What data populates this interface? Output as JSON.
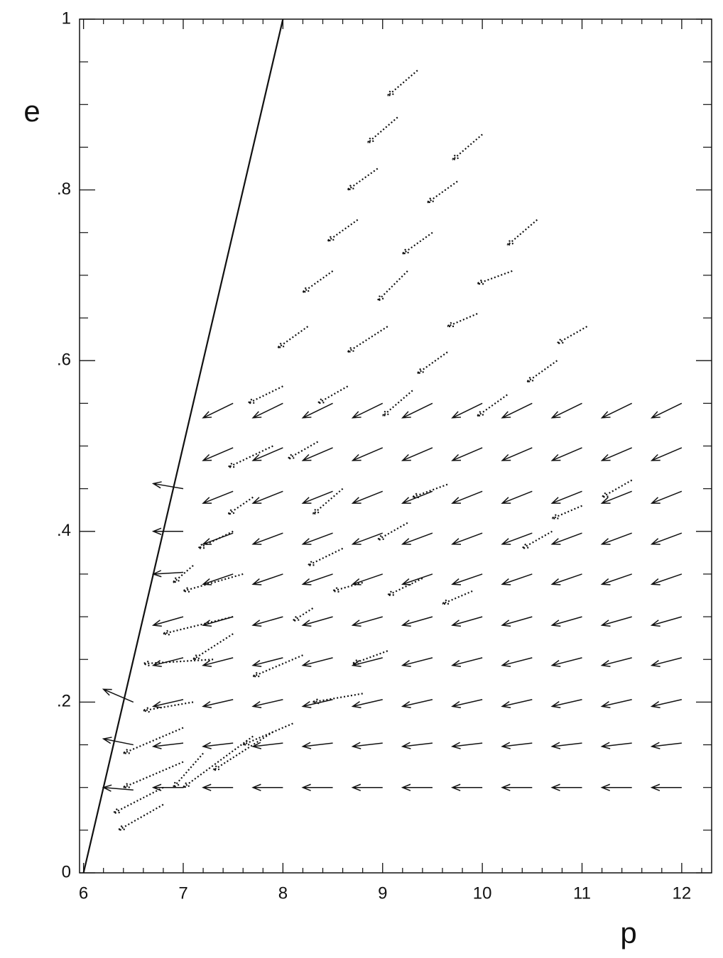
{
  "chart_data": {
    "type": "quiver",
    "xlabel": "p",
    "ylabel": "e",
    "xlim": [
      5.96,
      12.3
    ],
    "ylim": [
      0,
      1
    ],
    "xticks": [
      6,
      7,
      8,
      9,
      10,
      11,
      12
    ],
    "yticks": [
      0,
      {
        "value": 0.2,
        "label": ".2"
      },
      {
        "value": 0.4,
        "label": ".4"
      },
      {
        "value": 0.6,
        "label": ".6"
      },
      {
        "value": 0.8,
        "label": ".8"
      },
      1
    ],
    "xminorticks": [
      6.2,
      6.4,
      6.6,
      6.8,
      7.2,
      7.4,
      7.6,
      7.8,
      8.2,
      8.4,
      8.6,
      8.8,
      9.2,
      9.4,
      9.6,
      9.8,
      10.2,
      10.4,
      10.6,
      10.8,
      11.2,
      11.4,
      11.6,
      11.8,
      12.2
    ],
    "yminorticks": [
      0.05,
      0.1,
      0.15,
      0.25,
      0.3,
      0.35,
      0.45,
      0.5,
      0.55,
      0.65,
      0.7,
      0.75,
      0.85,
      0.9,
      0.95
    ],
    "line": {
      "p": [
        6,
        8
      ],
      "e": [
        0,
        1
      ]
    },
    "color": "#111111",
    "arrows": [
      {
        "style": "solid",
        "p0": [
          6.5,
          7.0,
          7.5,
          8.0,
          8.5,
          9.0,
          9.5,
          10.0,
          10.5,
          11.0,
          11.5,
          12.0
        ],
        "e0": [
          0.097,
          0.1,
          0.1,
          0.1,
          0.1,
          0.1,
          0.1,
          0.1,
          0.1,
          0.1,
          0.1,
          0.1
        ],
        "p1": [
          6.2,
          6.7,
          7.2,
          7.7,
          8.2,
          8.7,
          9.2,
          9.7,
          10.2,
          10.7,
          11.2,
          11.7
        ],
        "e1": [
          0.1,
          0.1,
          0.1,
          0.1,
          0.1,
          0.1,
          0.1,
          0.1,
          0.1,
          0.1,
          0.1,
          0.1
        ]
      },
      {
        "style": "solid",
        "p0": [
          6.5,
          7.0,
          7.5,
          8.0,
          8.5,
          9.0,
          9.5,
          10.0,
          10.5,
          11.0,
          11.5,
          12.0
        ],
        "e0": [
          0.15,
          0.152,
          0.152,
          0.152,
          0.152,
          0.152,
          0.152,
          0.152,
          0.152,
          0.152,
          0.152,
          0.152
        ],
        "p1": [
          6.2,
          6.7,
          7.2,
          7.7,
          8.2,
          8.7,
          9.2,
          9.7,
          10.2,
          10.7,
          11.2,
          11.7
        ],
        "e1": [
          0.157,
          0.148,
          0.148,
          0.148,
          0.148,
          0.148,
          0.148,
          0.148,
          0.148,
          0.148,
          0.148,
          0.148
        ]
      },
      {
        "style": "solid",
        "p0": [
          6.5,
          7.0,
          7.5,
          8.0,
          8.5,
          9.0,
          9.5,
          10.0,
          10.5,
          11.0,
          11.5,
          12.0
        ],
        "e0": [
          0.2,
          0.203,
          0.203,
          0.203,
          0.203,
          0.203,
          0.203,
          0.203,
          0.203,
          0.203,
          0.203,
          0.203
        ],
        "p1": [
          6.2,
          6.7,
          7.2,
          7.7,
          8.2,
          8.7,
          9.2,
          9.7,
          10.2,
          10.7,
          11.2,
          11.7
        ],
        "e1": [
          0.215,
          0.195,
          0.195,
          0.195,
          0.195,
          0.195,
          0.195,
          0.195,
          0.195,
          0.195,
          0.195,
          0.195
        ]
      },
      {
        "style": "solid",
        "p0": [
          7.0,
          7.5,
          8.0,
          8.5,
          9.0,
          9.5,
          10.0,
          10.5,
          11.0,
          11.5,
          12.0
        ],
        "e0": [
          0.252,
          0.252,
          0.252,
          0.252,
          0.252,
          0.252,
          0.252,
          0.252,
          0.252,
          0.252,
          0.252
        ],
        "p1": [
          6.7,
          7.2,
          7.7,
          8.2,
          8.7,
          9.2,
          9.7,
          10.2,
          10.7,
          11.2,
          11.7
        ],
        "e1": [
          0.243,
          0.243,
          0.243,
          0.243,
          0.243,
          0.243,
          0.243,
          0.243,
          0.243,
          0.243,
          0.243
        ]
      },
      {
        "style": "solid",
        "p0": [
          7.0,
          7.5,
          8.0,
          8.5,
          9.0,
          9.5,
          10.0,
          10.5,
          11.0,
          11.5,
          12.0
        ],
        "e0": [
          0.3,
          0.3,
          0.3,
          0.3,
          0.3,
          0.3,
          0.3,
          0.3,
          0.3,
          0.3,
          0.3
        ],
        "p1": [
          6.7,
          7.2,
          7.7,
          8.2,
          8.7,
          9.2,
          9.7,
          10.2,
          10.7,
          11.2,
          11.7
        ],
        "e1": [
          0.29,
          0.29,
          0.29,
          0.29,
          0.29,
          0.29,
          0.29,
          0.29,
          0.29,
          0.29,
          0.29
        ]
      },
      {
        "style": "solid",
        "p0": [
          7.0,
          7.5,
          8.0,
          8.5,
          9.0,
          9.5,
          10.0,
          10.5,
          11.0,
          11.5,
          12.0
        ],
        "e0": [
          0.352,
          0.35,
          0.35,
          0.35,
          0.35,
          0.35,
          0.35,
          0.35,
          0.35,
          0.35,
          0.35
        ],
        "p1": [
          6.7,
          7.2,
          7.7,
          8.2,
          8.7,
          9.2,
          9.7,
          10.2,
          10.7,
          11.2,
          11.7
        ],
        "e1": [
          0.35,
          0.338,
          0.338,
          0.338,
          0.338,
          0.338,
          0.338,
          0.338,
          0.338,
          0.338,
          0.338
        ]
      },
      {
        "style": "solid",
        "p0": [
          7.0,
          7.5,
          8.0,
          8.5,
          9.0,
          9.5,
          10.0,
          10.5,
          11.0,
          11.5,
          12.0
        ],
        "e0": [
          0.4,
          0.398,
          0.398,
          0.398,
          0.398,
          0.398,
          0.398,
          0.398,
          0.398,
          0.398,
          0.398
        ],
        "p1": [
          6.7,
          7.2,
          7.7,
          8.2,
          8.7,
          9.2,
          9.7,
          10.2,
          10.7,
          11.2,
          11.7
        ],
        "e1": [
          0.4,
          0.385,
          0.385,
          0.385,
          0.385,
          0.385,
          0.385,
          0.385,
          0.385,
          0.385,
          0.385
        ]
      },
      {
        "style": "solid",
        "p0": [
          7.0,
          7.5,
          8.0,
          8.5,
          9.0,
          9.5,
          10.0,
          10.5,
          11.0,
          11.5,
          12.0
        ],
        "e0": [
          0.45,
          0.447,
          0.447,
          0.447,
          0.447,
          0.447,
          0.447,
          0.447,
          0.447,
          0.447,
          0.447
        ],
        "p1": [
          6.7,
          7.2,
          7.7,
          8.2,
          8.7,
          9.2,
          9.7,
          10.2,
          10.7,
          11.2,
          11.7
        ],
        "e1": [
          0.456,
          0.433,
          0.433,
          0.433,
          0.433,
          0.433,
          0.433,
          0.433,
          0.433,
          0.433,
          0.433
        ]
      },
      {
        "style": "solid",
        "p0": [
          7.5,
          8.0,
          8.5,
          9.0,
          9.5,
          10.0,
          10.5,
          11.0,
          11.5,
          12.0
        ],
        "e0": [
          0.498,
          0.498,
          0.498,
          0.498,
          0.498,
          0.498,
          0.498,
          0.498,
          0.498,
          0.498
        ],
        "p1": [
          7.2,
          7.7,
          8.2,
          8.7,
          9.2,
          9.7,
          10.2,
          10.7,
          11.2,
          11.7
        ],
        "e1": [
          0.483,
          0.483,
          0.483,
          0.483,
          0.483,
          0.483,
          0.483,
          0.483,
          0.483,
          0.483
        ]
      },
      {
        "style": "solid",
        "p0": [
          7.5,
          8.0,
          8.5,
          9.0,
          9.5,
          10.0,
          10.5,
          11.0,
          11.5,
          12.0
        ],
        "e0": [
          0.55,
          0.55,
          0.55,
          0.55,
          0.55,
          0.55,
          0.55,
          0.55,
          0.55,
          0.55
        ],
        "p1": [
          7.2,
          7.7,
          8.2,
          8.7,
          9.2,
          9.7,
          10.2,
          10.7,
          11.2,
          11.7
        ],
        "e1": [
          0.533,
          0.533,
          0.533,
          0.533,
          0.533,
          0.533,
          0.533,
          0.533,
          0.533,
          0.533
        ]
      },
      {
        "style": "dotted",
        "p0": [
          9.35,
          9.15,
          10.0,
          8.95,
          9.75,
          8.75,
          9.5,
          10.55,
          8.5,
          9.25,
          10.3,
          8.25,
          9.05,
          9.95,
          11.05,
          9.65,
          10.75,
          8.0,
          8.65,
          9.3,
          10.25,
          7.9,
          8.35,
          9.65,
          11.5,
          7.7,
          8.6,
          11.0,
          9.25,
          10.7,
          8.6,
          7.5,
          9.4,
          8.1,
          7.9,
          7.7,
          7.2,
          6.8,
          6.8,
          7.0,
          7.0,
          7.1,
          7.3,
          7.5,
          7.6,
          7.5,
          8.8,
          9.05,
          8.3,
          8.8,
          9.9,
          8.2,
          7.1
        ],
        "e0": [
          0.94,
          0.885,
          0.865,
          0.825,
          0.81,
          0.765,
          0.75,
          0.765,
          0.705,
          0.705,
          0.705,
          0.64,
          0.64,
          0.655,
          0.64,
          0.61,
          0.6,
          0.57,
          0.57,
          0.565,
          0.56,
          0.5,
          0.505,
          0.455,
          0.46,
          0.44,
          0.45,
          0.43,
          0.41,
          0.4,
          0.38,
          0.4,
          0.345,
          0.175,
          0.165,
          0.16,
          0.14,
          0.08,
          0.1,
          0.13,
          0.17,
          0.2,
          0.25,
          0.3,
          0.35,
          0.28,
          0.21,
          0.26,
          0.31,
          0.34,
          0.33,
          0.255,
          0.36
        ],
        "p1": [
          9.05,
          8.85,
          9.7,
          8.65,
          9.45,
          8.45,
          9.2,
          10.25,
          8.2,
          8.95,
          9.95,
          7.95,
          8.65,
          9.65,
          10.75,
          9.35,
          10.45,
          7.65,
          8.35,
          9.0,
          9.95,
          7.45,
          8.05,
          9.3,
          11.2,
          7.45,
          8.3,
          10.7,
          8.95,
          10.4,
          8.25,
          7.15,
          9.05,
          7.6,
          7.3,
          7.0,
          6.9,
          6.35,
          6.3,
          6.4,
          6.4,
          6.6,
          6.6,
          6.8,
          7.0,
          7.1,
          8.3,
          8.7,
          8.1,
          8.5,
          9.6,
          7.7,
          6.9
        ],
        "e1": [
          0.91,
          0.855,
          0.835,
          0.8,
          0.785,
          0.74,
          0.725,
          0.735,
          0.68,
          0.67,
          0.69,
          0.615,
          0.61,
          0.64,
          0.62,
          0.585,
          0.575,
          0.55,
          0.55,
          0.535,
          0.535,
          0.475,
          0.485,
          0.44,
          0.44,
          0.42,
          0.42,
          0.415,
          0.39,
          0.38,
          0.36,
          0.38,
          0.325,
          0.15,
          0.12,
          0.1,
          0.1,
          0.05,
          0.07,
          0.1,
          0.14,
          0.19,
          0.245,
          0.28,
          0.33,
          0.25,
          0.2,
          0.245,
          0.295,
          0.33,
          0.315,
          0.23,
          0.34
        ]
      }
    ]
  }
}
